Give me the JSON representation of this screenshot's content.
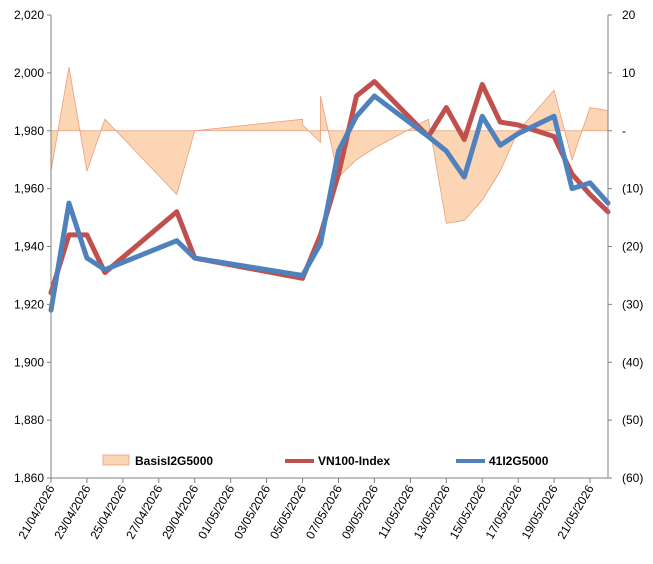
{
  "chart_data": {
    "type": "line",
    "x": [
      "21/04/2026",
      "22/04/2026",
      "23/04/2026",
      "24/04/2026",
      "28/04/2026",
      "29/04/2026",
      "05/05/2026",
      "06/05/2026",
      "07/05/2026",
      "08/05/2026",
      "09/05/2026",
      "12/05/2026",
      "13/05/2026",
      "14/05/2026",
      "15/05/2026",
      "16/05/2026",
      "17/05/2026",
      "19/05/2026",
      "20/05/2026",
      "21/05/2026",
      "22/05/2026"
    ],
    "x_tick_labels": [
      "21/04/2026",
      "23/04/2026",
      "25/04/2026",
      "27/04/2026",
      "29/04/2026",
      "01/05/2026",
      "03/05/2026",
      "05/05/2026",
      "07/05/2026",
      "09/05/2026",
      "11/05/2026",
      "13/05/2026",
      "15/05/2026",
      "17/05/2026",
      "19/05/2026",
      "21/05/2026"
    ],
    "x_tick_dates": [
      "21/04/2026",
      "23/04/2026",
      "25/04/2026",
      "27/04/2026",
      "29/04/2026",
      "01/05/2026",
      "03/05/2026",
      "05/05/2026",
      "07/05/2026",
      "09/05/2026",
      "11/05/2026",
      "13/05/2026",
      "15/05/2026",
      "17/05/2026",
      "19/05/2026",
      "21/05/2026"
    ],
    "y_left": {
      "min": 1860,
      "max": 2020,
      "step": 20,
      "tick_labels": [
        "1,860",
        "1,880",
        "1,900",
        "1,920",
        "1,940",
        "1,960",
        "1,980",
        "2,000",
        "2,020"
      ]
    },
    "y_right": {
      "min": -60,
      "max": 20,
      "step": 10,
      "tick_labels": [
        "(60)",
        "(50)",
        "(40)",
        "(30)",
        "(20)",
        "(10)",
        "-",
        "10",
        "20"
      ]
    },
    "series": [
      {
        "name": "BasisI2G5000",
        "kind": "area",
        "axis": "right",
        "color": "#fcd5b4",
        "edge_color": "#e9a07a",
        "x": [
          "21/04/2026",
          "22/04/2026",
          "23/04/2026",
          "24/04/2026",
          "28/04/2026",
          "29/04/2026",
          "05/05/2026",
          "05/05/2026",
          "06/05/2026",
          "06/05/2026",
          "07/05/2026",
          "08/05/2026",
          "09/05/2026",
          "12/05/2026",
          "13/05/2026",
          "14/05/2026",
          "15/05/2026",
          "16/05/2026",
          "17/05/2026",
          "19/05/2026",
          "20/05/2026",
          "21/05/2026",
          "22/05/2026"
        ],
        "values": [
          -7,
          11,
          -7,
          2,
          -11,
          0,
          2,
          1,
          -2,
          6,
          -8,
          -5,
          -3,
          2,
          -16,
          -15.5,
          -12,
          -7,
          0,
          7,
          -5,
          4,
          3.5
        ]
      },
      {
        "name": "VN100-Index",
        "kind": "line",
        "axis": "left",
        "color": "#c0504d",
        "values": [
          1924,
          1944,
          1944,
          1931,
          1952,
          1936,
          1929,
          1944,
          1965,
          1992,
          1997,
          1978,
          1988,
          1977,
          1996,
          1983,
          1982,
          1978,
          1965,
          1958,
          1952
        ]
      },
      {
        "name": "41I2G5000",
        "kind": "line",
        "axis": "left",
        "color": "#4f81bd",
        "values": [
          1918,
          1955,
          1936,
          1932,
          1942,
          1936,
          1930,
          1941,
          1973,
          1985,
          1992,
          1978,
          1973,
          1964,
          1985,
          1975,
          1979,
          1985,
          1960,
          1962,
          1955
        ]
      }
    ],
    "legend": {
      "placement": "bottom-inside",
      "entries": [
        "BasisI2G5000",
        "VN100-Index",
        "41I2G5000"
      ]
    },
    "grid": false
  }
}
